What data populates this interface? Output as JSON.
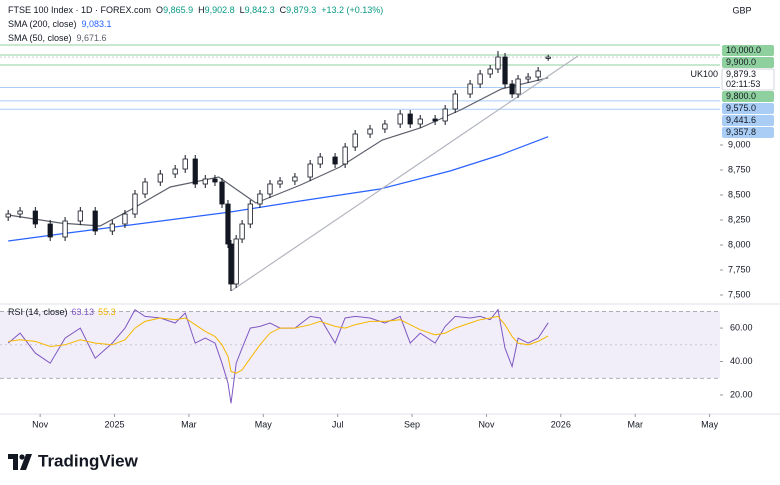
{
  "chart_data": {
    "type": "candlestick",
    "title": "FTSE 100 Index · 1D · FOREX.com",
    "ohlc_labels": [
      {
        "key": "O",
        "value": "9,865.9"
      },
      {
        "key": "H",
        "value": "9,902.8"
      },
      {
        "key": "L",
        "value": "9,842.3"
      },
      {
        "key": "C",
        "value": "9,879.3"
      }
    ],
    "change": "+13.2 (+0.13%)",
    "currency": "GBP",
    "up_color": "#ffffff",
    "down_color": "#131722",
    "x": [
      -0.86,
      -0.54,
      -0.13,
      0.27,
      0.67,
      1.08,
      1.48,
      1.94,
      2.28,
      2.55,
      2.82,
      3.23,
      3.63,
      3.9,
      4.17,
      4.44,
      4.7,
      4.89,
      5.05,
      5.13,
      5.27,
      5.43,
      5.65,
      5.91,
      6.18,
      6.45,
      6.85,
      7.26,
      7.53,
      7.93,
      8.2,
      8.47,
      8.87,
      9.27,
      9.68,
      9.95,
      10.22,
      10.62,
      10.89,
      11.16,
      11.56,
      11.83,
      12.1,
      12.31,
      12.5,
      12.69,
      12.85,
      13.12,
      13.39,
      13.66
    ],
    "open": [
      8280,
      8310,
      8340,
      8210,
      8080,
      8240,
      8340,
      8140,
      8210,
      8310,
      8510,
      8630,
      8710,
      8760,
      8860,
      8610,
      8660,
      8630,
      8410,
      8010,
      7610,
      8060,
      8210,
      8410,
      8510,
      8610,
      8640,
      8680,
      8810,
      8880,
      8810,
      8980,
      9110,
      9160,
      9210,
      9310,
      9210,
      9260,
      9240,
      9360,
      9510,
      9610,
      9710,
      9760,
      9880,
      9610,
      9510,
      9660,
      9680,
      9865.9
    ],
    "high": [
      8350,
      8380,
      8380,
      8250,
      8280,
      8380,
      8380,
      8250,
      8350,
      8550,
      8670,
      8750,
      8800,
      8900,
      8900,
      8700,
      8700,
      8670,
      8450,
      8050,
      8100,
      8250,
      8450,
      8550,
      8650,
      8680,
      8720,
      8850,
      8920,
      8920,
      9020,
      9150,
      9200,
      9250,
      9350,
      9350,
      9300,
      9300,
      9400,
      9550,
      9650,
      9750,
      9800,
      9940,
      9920,
      9650,
      9700,
      9720,
      9780,
      9902.8
    ],
    "low": [
      8240,
      8270,
      8170,
      8040,
      8040,
      8200,
      8100,
      8100,
      8170,
      8270,
      8470,
      8590,
      8670,
      8720,
      8570,
      8570,
      8590,
      8370,
      7970,
      7540,
      7570,
      8020,
      8170,
      8370,
      8470,
      8570,
      8600,
      8640,
      8770,
      8770,
      8770,
      8940,
      9070,
      9120,
      9170,
      9170,
      9170,
      9200,
      9200,
      9320,
      9470,
      9570,
      9670,
      9720,
      9570,
      9470,
      9470,
      9620,
      9640,
      9842.3
    ],
    "close": [
      8310,
      8340,
      8210,
      8080,
      8240,
      8340,
      8140,
      8210,
      8310,
      8510,
      8630,
      8710,
      8760,
      8860,
      8610,
      8660,
      8630,
      8410,
      8010,
      7610,
      8060,
      8210,
      8410,
      8510,
      8610,
      8640,
      8680,
      8810,
      8880,
      8810,
      8980,
      9110,
      9160,
      9210,
      9310,
      9210,
      9260,
      9240,
      9360,
      9510,
      9610,
      9710,
      9760,
      9880,
      9610,
      9510,
      9660,
      9680,
      9740,
      9879.3
    ],
    "xlim": [
      -1.08,
      18.28
    ],
    "xticks": [
      {
        "value": 0,
        "label": "Nov"
      },
      {
        "value": 2,
        "label": "2025"
      },
      {
        "value": 4,
        "label": "Mar"
      },
      {
        "value": 6,
        "label": "May"
      },
      {
        "value": 8,
        "label": "Jul"
      },
      {
        "value": 10,
        "label": "Sep"
      },
      {
        "value": 12,
        "label": "Nov"
      },
      {
        "value": 14,
        "label": "2026"
      },
      {
        "value": 16,
        "label": "Mar"
      },
      {
        "value": 18,
        "label": "May"
      }
    ],
    "ylim": [
      7450,
      10400
    ],
    "yticks": [
      {
        "value": 7500,
        "label": "7,500"
      },
      {
        "value": 7750,
        "label": "7,750"
      },
      {
        "value": 8000,
        "label": "8,000"
      },
      {
        "value": 8250,
        "label": "8,250"
      },
      {
        "value": 8500,
        "label": "8,500"
      },
      {
        "value": 8750,
        "label": "8,750"
      },
      {
        "value": 9000,
        "label": "9,000"
      }
    ],
    "overlays": [
      {
        "name": "SMA (200, close)",
        "last": "9,083.1",
        "color": "#2962ff",
        "x": [
          -0.86,
          0.54,
          2.42,
          5.11,
          6.99,
          9.14,
          11.02,
          12.37,
          13.66
        ],
        "values": [
          8040,
          8110,
          8200,
          8330,
          8440,
          8560,
          8740,
          8900,
          9083.1
        ]
      },
      {
        "name": "SMA (50, close)",
        "last": "9,671.6",
        "color": "#5d606b",
        "x": [
          -0.86,
          0.54,
          1.61,
          2.42,
          3.5,
          4.8,
          5.8,
          7.0,
          8.06,
          9.2,
          10.22,
          11.3,
          12.4,
          13.66
        ],
        "values": [
          8300,
          8220,
          8190,
          8350,
          8580,
          8680,
          8420,
          8600,
          8780,
          9050,
          9170,
          9350,
          9560,
          9671.6
        ]
      }
    ],
    "trendline": {
      "color": "#b2b5be",
      "x": [
        5.13,
        14.46
      ],
      "values": [
        7540,
        9890
      ]
    },
    "levels": [
      {
        "value": 10000,
        "label": "10,000.0",
        "color": "#8fd19e"
      },
      {
        "value": 9900,
        "label": "9,900.0",
        "color": "#8fd19e"
      },
      {
        "value": 9800,
        "label": "9,800.0",
        "color": "#8fd19e"
      },
      {
        "value": 9575,
        "label": "9,575.0",
        "color": "#a9cdf5"
      },
      {
        "value": 9441.6,
        "label": "9,441.6",
        "color": "#a9cdf5"
      },
      {
        "value": 9357.8,
        "label": "9,357.8",
        "color": "#a9cdf5"
      }
    ],
    "last_price": {
      "symbol": "UK100",
      "value": 9879.3,
      "label": "9,879.3",
      "countdown": "02:11:53"
    },
    "rsi": {
      "type": "line",
      "title": "RSI (14, close)",
      "ylim": [
        11,
        72
      ],
      "yticks": [
        {
          "value": 20,
          "label": "20.00"
        },
        {
          "value": 40,
          "label": "40.00"
        },
        {
          "value": 60,
          "label": "60.00"
        }
      ],
      "band": [
        30,
        70
      ],
      "midline": 50,
      "band_color": "#7e57c2",
      "series": [
        {
          "last": "63.13",
          "color": "#7e57c2",
          "values": [
            51,
            57,
            45,
            39,
            54,
            60,
            42,
            51,
            60,
            71,
            67,
            66,
            63,
            69,
            51,
            54,
            51,
            39,
            27,
            15,
            39,
            48,
            60,
            61,
            63,
            60,
            60,
            67,
            66,
            51,
            66,
            67,
            66,
            63,
            67,
            51,
            57,
            51,
            61,
            67,
            66,
            67,
            65,
            71,
            48,
            37,
            54,
            51,
            54,
            63.13
          ]
        },
        {
          "last": "55.3",
          "color": "#f5b700",
          "values": [
            52,
            53,
            52,
            49,
            50,
            53,
            51,
            50,
            53,
            60,
            64,
            66,
            65,
            66,
            62,
            58,
            55,
            50,
            43,
            34,
            33,
            35,
            42,
            50,
            57,
            60,
            60,
            62,
            64,
            61,
            60,
            62,
            64,
            64,
            65,
            62,
            59,
            56,
            57,
            60,
            63,
            65,
            66,
            67,
            62,
            55,
            51,
            50,
            52,
            55.3
          ]
        }
      ]
    },
    "branding": "TradingView"
  }
}
